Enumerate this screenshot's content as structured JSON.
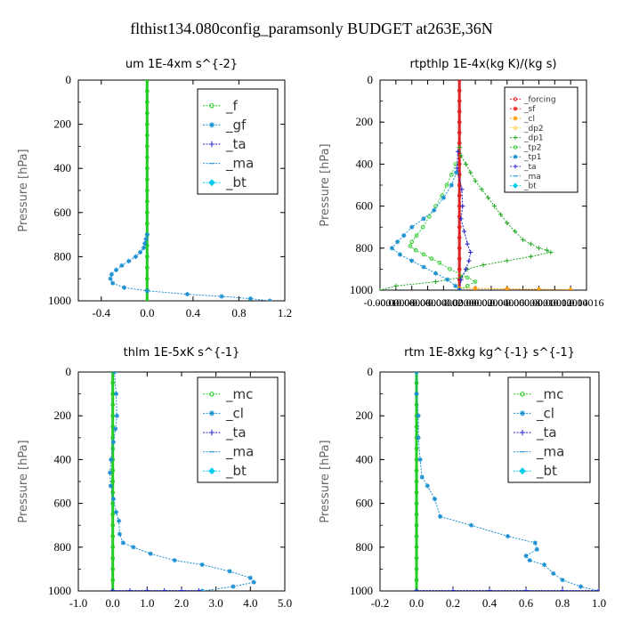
{
  "figure": {
    "title": "flthist134.080config_paramsonly  BUDGET at263E,36N"
  },
  "chart_data": [
    {
      "type": "line",
      "title": "um   1E-4xm  s^{-2}",
      "ylabel": "Pressure [hPa]",
      "xlim": [
        -0.6,
        1.2
      ],
      "ylim": [
        1000,
        0
      ],
      "xticks": [
        -0.4,
        0.0,
        0.4,
        0.8,
        1.2
      ],
      "xtick_labels": [
        "-0.4",
        "0.0",
        "0.4",
        "0.8",
        "1.2"
      ],
      "yticks": [
        0,
        200,
        400,
        600,
        800,
        1000
      ],
      "ytick_labels": [
        "0",
        "200",
        "400",
        "600",
        "800",
        "1000"
      ],
      "legend_size": "large",
      "series": [
        {
          "name": "_f",
          "color": "#22cc22",
          "marker": "circle",
          "x": [
            0,
            0,
            0,
            0,
            0,
            0,
            0,
            0,
            0,
            0,
            0,
            0,
            0,
            0,
            0,
            0,
            0,
            0,
            0,
            0,
            0
          ],
          "y": [
            0,
            50,
            100,
            150,
            200,
            250,
            300,
            350,
            400,
            450,
            500,
            550,
            600,
            650,
            700,
            750,
            800,
            850,
            900,
            950,
            1000
          ]
        },
        {
          "name": "_gf",
          "color": "#1a90d0",
          "marker": "star",
          "x": [
            0,
            -0.01,
            -0.02,
            -0.03,
            -0.06,
            -0.1,
            -0.16,
            -0.22,
            -0.27,
            -0.31,
            -0.32,
            -0.3,
            -0.2,
            0.0,
            0.35,
            0.65,
            0.9,
            1.07
          ],
          "y": [
            700,
            720,
            740,
            760,
            780,
            800,
            820,
            840,
            860,
            880,
            900,
            920,
            940,
            955,
            970,
            980,
            990,
            1000
          ]
        },
        {
          "name": "_ta",
          "color": "#2222cc",
          "marker": "plus",
          "x": [],
          "y": []
        },
        {
          "name": "_ma",
          "color": "#3399dd",
          "marker": "dash",
          "x": [],
          "y": []
        },
        {
          "name": "_bt",
          "color": "#00ccee",
          "marker": "diamond",
          "x": [],
          "y": []
        }
      ]
    },
    {
      "type": "line",
      "title": "rtpthlp   1E-4x(kg K)/(kg s)",
      "ylabel": "Pressure [hPa]",
      "xlim": [
        -0.0001,
        0.00016
      ],
      "ylim": [
        1000,
        0
      ],
      "xticks": [
        -0.0001,
        -8e-05,
        -6e-05,
        -4e-05,
        -2e-05,
        0.0,
        2e-05,
        4e-05,
        6e-05,
        8e-05,
        0.0001,
        0.00012,
        0.00014,
        0.00016
      ],
      "xtick_labels": [
        "-0.0001",
        "-0.00008",
        "-0.00006",
        "-0.00004",
        "-0.00002",
        "0.0000",
        "0.00002",
        "0.00004",
        "0.00006",
        "0.00008",
        "0.0001",
        "0.00012",
        "0.00014",
        "0.00016"
      ],
      "yticks": [
        0,
        200,
        400,
        600,
        800,
        1000
      ],
      "ytick_labels": [
        "0",
        "200",
        "400",
        "600",
        "800",
        "1000"
      ],
      "legend_size": "small",
      "series": [
        {
          "name": "_forcing",
          "color": "#dd2222",
          "marker": "circle",
          "x": [
            0,
            0,
            0,
            0,
            0,
            0,
            0,
            0,
            0,
            0,
            0,
            0,
            0,
            0,
            0,
            0,
            0,
            0,
            0,
            0,
            0
          ],
          "y": [
            0,
            50,
            100,
            150,
            200,
            250,
            300,
            350,
            400,
            450,
            500,
            550,
            600,
            650,
            700,
            750,
            800,
            850,
            900,
            950,
            1000
          ]
        },
        {
          "name": "_sf",
          "color": "#ee3333",
          "marker": "star",
          "x": [],
          "y": []
        },
        {
          "name": "_cl",
          "color": "#ff9900",
          "marker": "star",
          "x": [
            0,
            2e-05,
            6e-05,
            0.0001,
            0.00014
          ],
          "y": [
            990,
            992,
            994,
            996,
            998
          ]
        },
        {
          "name": "_dp2",
          "color": "#ffcc33",
          "marker": "circle",
          "x": [],
          "y": []
        },
        {
          "name": "_dp1",
          "color": "#22aa22",
          "marker": "plus",
          "x": [
            0,
            2e-06,
            8e-06,
            1.4e-05,
            2e-05,
            2.8e-05,
            3.6e-05,
            4.4e-05,
            5.2e-05,
            6e-05,
            7e-05,
            8e-05,
            9e-05,
            0.0001,
            0.00011,
            0.000115,
            9e-05,
            6e-05,
            3e-05,
            1e-05,
            2e-06,
            -3e-05,
            -8e-05,
            -0.0001
          ],
          "y": [
            320,
            360,
            400,
            440,
            480,
            520,
            560,
            600,
            640,
            680,
            720,
            760,
            780,
            800,
            810,
            820,
            840,
            860,
            880,
            900,
            940,
            960,
            980,
            1000
          ]
        },
        {
          "name": "_tp2",
          "color": "#33cc33",
          "marker": "circle",
          "x": [
            -5e-06,
            -1e-05,
            -1.6e-05,
            -2.2e-05,
            -3e-05,
            -3.8e-05,
            -4.6e-05,
            -5.4e-05,
            -6e-05,
            -6.2e-05,
            -5.5e-05,
            -4.5e-05,
            -3.5e-05,
            -2.5e-05,
            -1.2e-05,
            1e-05,
            2e-05,
            1e-05,
            0
          ],
          "y": [
            400,
            450,
            500,
            550,
            600,
            650,
            700,
            740,
            770,
            790,
            810,
            830,
            850,
            870,
            900,
            940,
            960,
            980,
            1000
          ]
        },
        {
          "name": "_tp1",
          "color": "#1a90d0",
          "marker": "star",
          "x": [
            -4e-06,
            -1e-05,
            -2e-05,
            -3.2e-05,
            -4.5e-05,
            -6e-05,
            -7e-05,
            -7.8e-05,
            -8.5e-05,
            -7.5e-05,
            -6e-05,
            -4.5e-05,
            -3e-05,
            -1.5e-05,
            -5e-06,
            0
          ],
          "y": [
            440,
            500,
            560,
            620,
            660,
            700,
            740,
            770,
            800,
            830,
            860,
            890,
            920,
            950,
            980,
            1000
          ]
        },
        {
          "name": "_ta",
          "color": "#2222cc",
          "marker": "plus",
          "x": [
            -2e-06,
            -3e-06,
            3e-06,
            4e-06,
            2e-06,
            6e-06,
            1e-05,
            1.4e-05,
            1.2e-05,
            8e-06,
            2e-06,
            0
          ],
          "y": [
            340,
            420,
            520,
            600,
            660,
            720,
            780,
            820,
            860,
            900,
            950,
            1000
          ]
        },
        {
          "name": "_ma",
          "color": "#3399dd",
          "marker": "dash",
          "x": [],
          "y": []
        },
        {
          "name": "_bt",
          "color": "#00ccee",
          "marker": "diamond",
          "x": [],
          "y": []
        }
      ]
    },
    {
      "type": "line",
      "title": "thlm   1E-5xK  s^{-1}",
      "ylabel": "Pressure [hPa]",
      "xlim": [
        -1.0,
        5.0
      ],
      "ylim": [
        1000,
        0
      ],
      "xticks": [
        -1.0,
        0.0,
        1.0,
        2.0,
        3.0,
        4.0,
        5.0
      ],
      "xtick_labels": [
        "-1.0",
        "0.0",
        "1.0",
        "2.0",
        "3.0",
        "4.0",
        "5.0"
      ],
      "yticks": [
        0,
        200,
        400,
        600,
        800,
        1000
      ],
      "ytick_labels": [
        "0",
        "200",
        "400",
        "600",
        "800",
        "1000"
      ],
      "legend_size": "large",
      "series": [
        {
          "name": "_mc",
          "color": "#22cc22",
          "marker": "circle",
          "x": [
            0,
            0,
            0,
            0,
            0,
            0,
            0,
            0,
            0,
            0,
            0,
            0,
            0,
            0,
            0,
            0,
            0,
            0,
            0,
            0,
            0
          ],
          "y": [
            0,
            50,
            100,
            150,
            200,
            250,
            300,
            350,
            400,
            450,
            500,
            550,
            600,
            650,
            700,
            750,
            800,
            850,
            900,
            950,
            1000
          ]
        },
        {
          "name": "_cl",
          "color": "#1a90d0",
          "marker": "star",
          "x": [
            0.05,
            0.1,
            0.12,
            0.08,
            0.02,
            -0.05,
            -0.08,
            -0.06,
            0.02,
            0.1,
            0.18,
            0.2,
            0.3,
            0.6,
            1.1,
            1.8,
            2.6,
            3.4,
            4.0,
            4.1,
            3.5,
            2.6
          ],
          "y": [
            0,
            100,
            200,
            260,
            320,
            400,
            460,
            520,
            580,
            640,
            680,
            740,
            780,
            800,
            830,
            860,
            880,
            910,
            940,
            960,
            980,
            1000
          ]
        },
        {
          "name": "_ta",
          "color": "#2222cc",
          "marker": "plus",
          "x": [
            0,
            0.5,
            1.0,
            1.5,
            2.0,
            2.5
          ],
          "y": [
            998,
            998,
            998,
            998,
            998,
            998
          ]
        },
        {
          "name": "_ma",
          "color": "#3399dd",
          "marker": "dash",
          "x": [],
          "y": []
        },
        {
          "name": "_bt",
          "color": "#00ccee",
          "marker": "diamond",
          "x": [],
          "y": []
        }
      ]
    },
    {
      "type": "line",
      "title": "rtm   1E-8xkg  kg^{-1} s^{-1}",
      "ylabel": "Pressure [hPa]",
      "xlim": [
        -0.2,
        1.0
      ],
      "ylim": [
        1000,
        0
      ],
      "xticks": [
        -0.2,
        0.0,
        0.2,
        0.4,
        0.6,
        0.8,
        1.0
      ],
      "xtick_labels": [
        "-0.2",
        "0.0",
        "0.2",
        "0.4",
        "0.6",
        "0.8",
        "1.0"
      ],
      "yticks": [
        0,
        200,
        400,
        600,
        800,
        1000
      ],
      "ytick_labels": [
        "0",
        "200",
        "400",
        "600",
        "800",
        "1000"
      ],
      "legend_size": "large",
      "series": [
        {
          "name": "_mc",
          "color": "#22cc22",
          "marker": "circle",
          "x": [
            0,
            0,
            0,
            0,
            0,
            0,
            0,
            0,
            0,
            0,
            0,
            0,
            0,
            0,
            0,
            0,
            0,
            0,
            0,
            0,
            0
          ],
          "y": [
            0,
            50,
            100,
            150,
            200,
            250,
            300,
            350,
            400,
            450,
            500,
            550,
            600,
            650,
            700,
            750,
            800,
            850,
            900,
            950,
            1000
          ]
        },
        {
          "name": "_cl",
          "color": "#1a90d0",
          "marker": "star",
          "x": [
            0.0,
            0.0,
            0.01,
            0.01,
            0.02,
            0.03,
            0.06,
            0.1,
            0.13,
            0.3,
            0.5,
            0.65,
            0.66,
            0.6,
            0.62,
            0.7,
            0.75,
            0.8,
            0.9,
            1.0
          ],
          "y": [
            0,
            100,
            200,
            300,
            400,
            480,
            520,
            580,
            660,
            700,
            750,
            780,
            810,
            840,
            860,
            880,
            920,
            950,
            980,
            1000
          ]
        },
        {
          "name": "_ta",
          "color": "#2222cc",
          "marker": "plus",
          "x": [
            0,
            0.2,
            0.4,
            0.6,
            0.8,
            1.0
          ],
          "y": [
            998,
            998,
            998,
            998,
            998,
            998
          ]
        },
        {
          "name": "_ma",
          "color": "#3399dd",
          "marker": "dash",
          "x": [],
          "y": []
        },
        {
          "name": "_bt",
          "color": "#00ccee",
          "marker": "diamond",
          "x": [],
          "y": []
        }
      ]
    }
  ]
}
